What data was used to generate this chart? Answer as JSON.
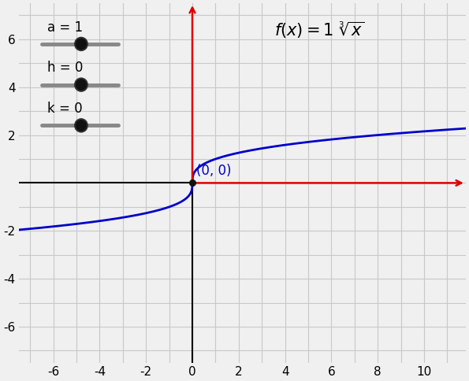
{
  "xlim": [
    -7.5,
    11.8
  ],
  "ylim": [
    -7.5,
    7.5
  ],
  "x_ticks": [
    -6,
    -4,
    -2,
    0,
    2,
    4,
    6,
    8,
    10
  ],
  "y_ticks": [
    -6,
    -4,
    -2,
    2,
    4,
    6
  ],
  "grid_color": "#c8c8c8",
  "bg_color": "#f0f0f0",
  "axis_red": "#dd0000",
  "axis_black": "#000000",
  "curve_color": "#0000cc",
  "curve_linewidth": 2.0,
  "origin_dot_color": "#111111",
  "label_color": "#0000cc",
  "label_text": "(0, 0)",
  "slider_labels": [
    "a = 1",
    "h = 0",
    "k = 0"
  ],
  "tick_fontsize": 11,
  "label_fontsize": 12,
  "title_text": "$f(x) = 1\\ \\sqrt[3]{x}$",
  "title_fontsize": 15
}
